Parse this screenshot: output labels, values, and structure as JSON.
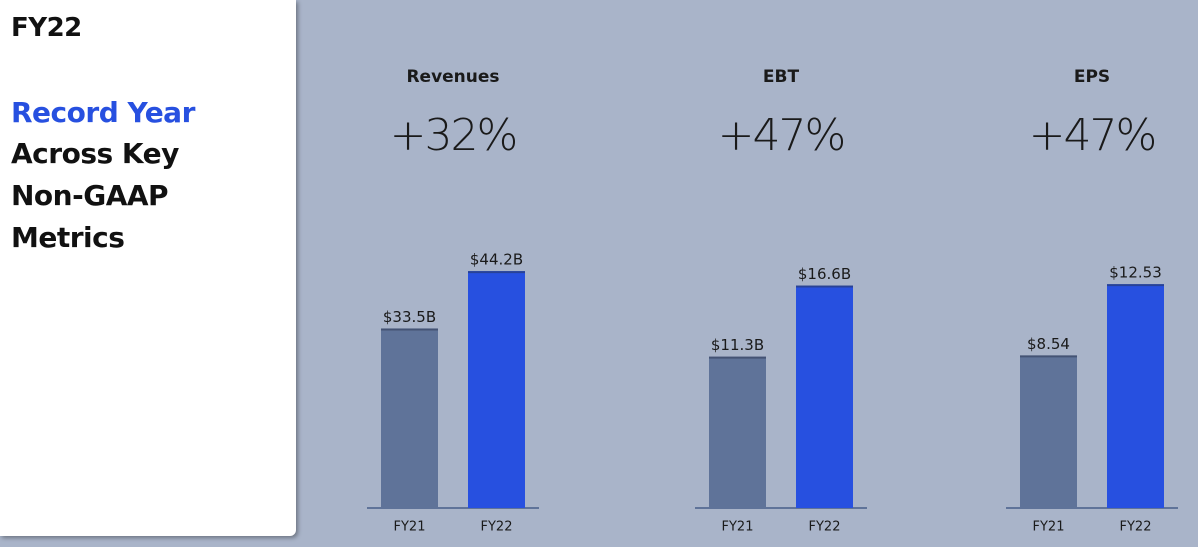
{
  "left_panel": {
    "heading": "FY22",
    "highlight": "Record Year",
    "lines": [
      "Across Key",
      "Non-GAAP",
      "Metrics"
    ]
  },
  "chart_data": [
    {
      "type": "bar",
      "title": "Revenues",
      "subtitle": "+32%",
      "categories": [
        "FY21",
        "FY22"
      ],
      "values": [
        33.5,
        44.2
      ],
      "value_labels": [
        "$33.5B",
        "$44.2B"
      ],
      "colors": [
        "#5f7399",
        "#2750e0"
      ],
      "ylim": [
        0,
        50
      ]
    },
    {
      "type": "bar",
      "title": "EBT",
      "subtitle": "+47%",
      "categories": [
        "FY21",
        "FY22"
      ],
      "values": [
        11.3,
        16.6
      ],
      "value_labels": [
        "$11.3B",
        "$16.6B"
      ],
      "colors": [
        "#5f7399",
        "#2750e0"
      ],
      "ylim": [
        0,
        20
      ]
    },
    {
      "type": "bar",
      "title": "EPS",
      "subtitle": "+47%",
      "categories": [
        "FY21",
        "FY22"
      ],
      "values": [
        8.54,
        12.53
      ],
      "value_labels": [
        "$8.54",
        "$12.53"
      ],
      "colors": [
        "#5f7399",
        "#2750e0"
      ],
      "ylim": [
        0,
        15
      ]
    }
  ]
}
